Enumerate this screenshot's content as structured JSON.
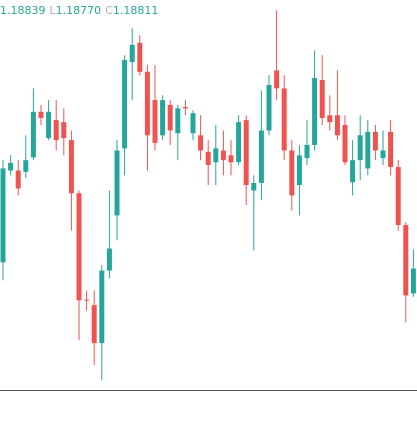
{
  "chart_data": {
    "type": "candlestick",
    "legend_items": [
      {
        "value": "1.18839"
      },
      {
        "label": "L",
        "value": "1.18770"
      },
      {
        "label": "C",
        "value": "1.18811"
      }
    ],
    "up_color": "#26a69a",
    "down_color": "#ef5350",
    "ylim": [
      1.18635,
      1.192
    ],
    "series": {
      "open": [
        1.1882,
        1.18953,
        1.18953,
        1.18951,
        1.18972,
        1.19038,
        1.19,
        1.19026,
        1.19023,
        1.18997,
        1.1892,
        1.18766,
        1.18758,
        1.18703,
        1.18808,
        1.18888,
        1.18985,
        1.1911,
        1.19138,
        1.19096,
        1.19055,
        1.19004,
        1.19048,
        1.19007,
        1.19045,
        1.19007,
        1.19004,
        1.1898,
        1.18965,
        1.18982,
        1.18975,
        1.18965,
        1.19026,
        1.18924,
        1.18935,
        1.19011,
        1.19098,
        1.19072,
        1.18982,
        1.18932,
        1.18971,
        1.1899,
        1.19084,
        1.19033,
        1.19033,
        1.19019,
        1.18936,
        1.18968,
        1.18956,
        1.19009,
        1.18971,
        1.19009,
        1.18958,
        1.18874,
        1.18775
      ],
      "high": [
        1.18968,
        1.18975,
        1.18968,
        1.19004,
        1.19072,
        1.19048,
        1.19055,
        1.19055,
        1.19043,
        1.19011,
        1.18924,
        1.18779,
        1.18779,
        1.18816,
        1.18924,
        1.18997,
        1.1912,
        1.19159,
        1.19149,
        1.19106,
        1.19106,
        1.19062,
        1.19055,
        1.19048,
        1.19055,
        1.1904,
        1.19033,
        1.18997,
        1.19019,
        1.19011,
        1.18997,
        1.19033,
        1.19033,
        1.18946,
        1.19069,
        1.19091,
        1.19185,
        1.19091,
        1.18997,
        1.1899,
        1.19026,
        1.19127,
        1.1912,
        1.19062,
        1.19098,
        1.19033,
        1.18997,
        1.19033,
        1.19026,
        1.19019,
        1.19011,
        1.19026,
        1.18968,
        1.18878,
        1.18839
      ],
      "low": [
        1.18794,
        1.18946,
        1.18917,
        1.18942,
        1.18968,
        1.19019,
        1.18997,
        1.18982,
        1.18975,
        1.18866,
        1.18707,
        1.1875,
        1.18671,
        1.18649,
        1.18797,
        1.18852,
        1.18946,
        1.19055,
        1.19091,
        1.18953,
        1.18982,
        1.18997,
        1.1899,
        1.18968,
        1.19033,
        1.18997,
        1.18968,
        1.18932,
        1.18932,
        1.18946,
        1.18946,
        1.18961,
        1.18903,
        1.18837,
        1.1891,
        1.19004,
        1.19055,
        1.18968,
        1.18895,
        1.18888,
        1.18961,
        1.18982,
        1.19019,
        1.19011,
        1.18997,
        1.18961,
        1.18917,
        1.18939,
        1.18946,
        1.18968,
        1.18961,
        1.18946,
        1.18866,
        1.18733,
        1.1877
      ],
      "close": [
        1.18956,
        1.18964,
        1.18927,
        1.18968,
        1.19038,
        1.19029,
        1.19038,
        1.18997,
        1.19,
        1.1892,
        1.18765,
        1.18765,
        1.18703,
        1.18808,
        1.1884,
        1.18982,
        1.19113,
        1.19135,
        1.19096,
        1.19004,
        1.18993,
        1.19055,
        1.19011,
        1.19043,
        1.19043,
        1.19036,
        1.18982,
        1.18961,
        1.18985,
        1.18968,
        1.18965,
        1.19023,
        1.18932,
        1.18935,
        1.19011,
        1.19077,
        1.19072,
        1.18982,
        1.18917,
        1.18975,
        1.1899,
        1.19087,
        1.19029,
        1.19023,
        1.19004,
        1.18965,
        1.18968,
        1.19004,
        1.19009,
        1.18982,
        1.18982,
        1.18958,
        1.18874,
        1.18772,
        1.18811
      ]
    }
  }
}
